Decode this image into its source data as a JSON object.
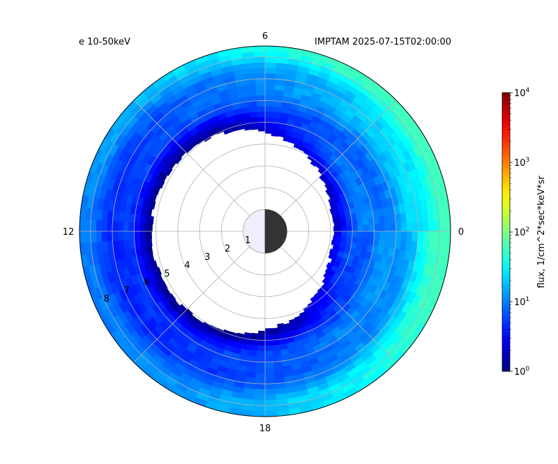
{
  "chart_data": {
    "type": "heatmap",
    "projection": "polar",
    "title_left": "e 10-50keV",
    "title_right": "IMPTAM 2025-07-15T02:00:00",
    "angular_axis": {
      "quantity": "MLT",
      "tick_labels": [
        "0",
        "6",
        "12",
        "18"
      ],
      "zero_direction": "right",
      "direction": "counter-clockwise"
    },
    "radial_axis": {
      "tick_labels": [
        "1",
        "2",
        "3",
        "4",
        "5",
        "6",
        "7",
        "8"
      ],
      "rlim": [
        0,
        8.5
      ]
    },
    "grid": true,
    "earth_marker": {
      "radius": 1,
      "dayside": "left",
      "nightside": "right"
    },
    "colorbar": {
      "label": "flux, 1/cm^2*sec*keV*sr",
      "scale": "log",
      "range": [
        1,
        10000
      ],
      "cmap": "jet",
      "tick_labels": [
        "10^0",
        "10^1",
        "10^2",
        "10^3",
        "10^4"
      ]
    },
    "flux_model": {
      "description_values": {
        "r_outer_green_night": 8.5,
        "flux_outer_night": 40,
        "flux_outer_day": 8,
        "flux_inner_edge": 1.5,
        "flux_mid_ring": 25,
        "inner_boundary_day": 5.6,
        "inner_boundary_dawn_dusk": 4.3,
        "inner_boundary_night": 2.9
      }
    }
  }
}
